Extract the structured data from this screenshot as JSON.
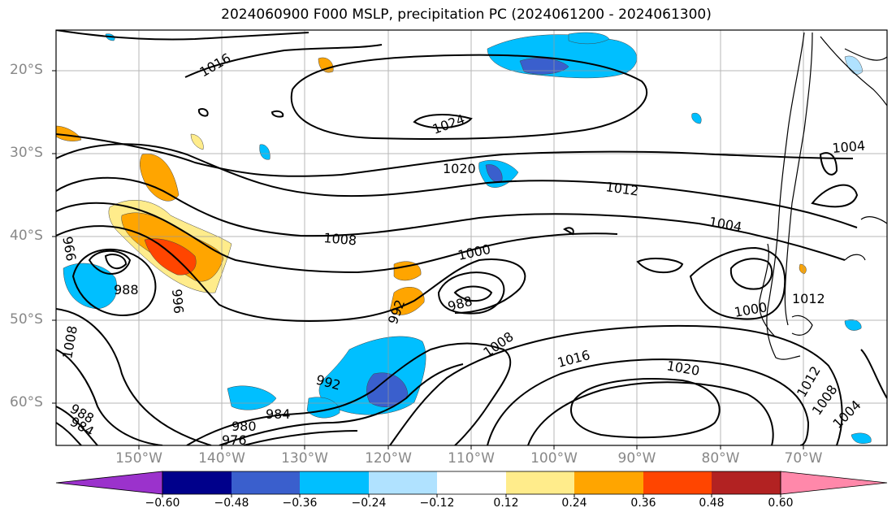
{
  "title": "2024060900 F000 MSLP, precipitation PC (2024061200 - 2024061300)",
  "lat_labels": [
    "20°S",
    "30°S",
    "40°S",
    "50°S",
    "60°S"
  ],
  "lon_labels": [
    "150°W",
    "140°W",
    "130°W",
    "120°W",
    "110°W",
    "100°W",
    "90°W",
    "80°W",
    "70°W"
  ],
  "colorbar": {
    "ticks": [
      "−0.60",
      "−0.48",
      "−0.36",
      "−0.24",
      "−0.12",
      "0.12",
      "0.24",
      "0.36",
      "0.48",
      "0.60"
    ],
    "colors": [
      "#9b32cc",
      "#00008b",
      "#3a5fcd",
      "#00bfff",
      "#b0e2ff",
      "#ffffff",
      "#ffec8b",
      "#ffa500",
      "#ff4500",
      "#b22222",
      "#ff88aa"
    ]
  },
  "isobar_labels": [
    "1016",
    "1024",
    "1020",
    "1012",
    "1004",
    "1008",
    "1000",
    "988",
    "996",
    "996",
    "988",
    "992",
    "1008",
    "1016",
    "1020",
    "992",
    "984",
    "980",
    "976",
    "988",
    "984",
    "1008",
    "1012",
    "1004",
    "1012",
    "1008",
    "1004",
    "1000"
  ]
}
